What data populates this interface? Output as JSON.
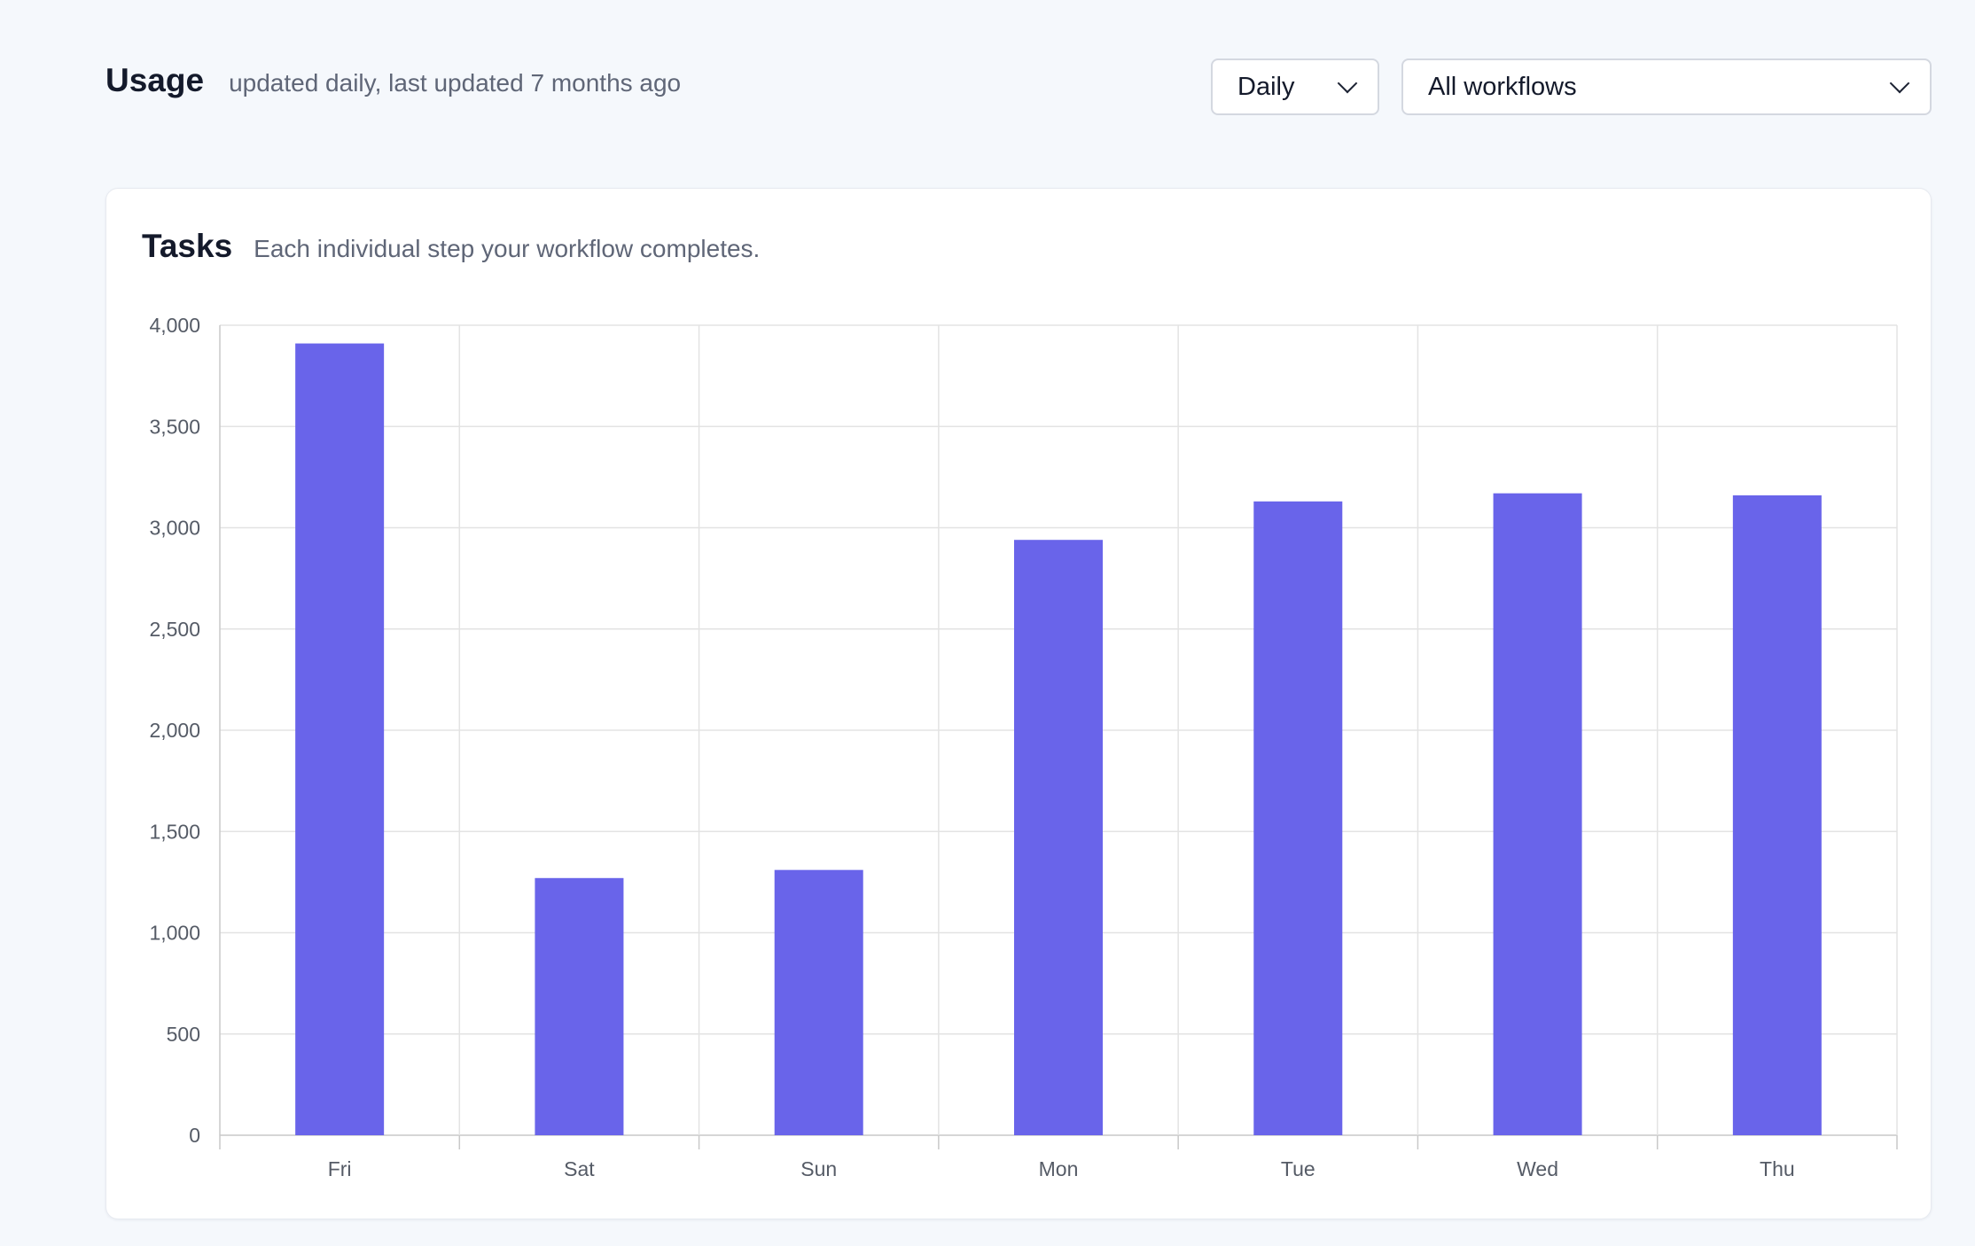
{
  "usage": {
    "title": "Usage",
    "subtitle": "updated daily, last updated 7 months ago"
  },
  "filters": {
    "period": {
      "selected": "Daily",
      "icon": "chevron-down-icon"
    },
    "workflow": {
      "selected": "All workflows",
      "icon": "chevron-down-icon"
    }
  },
  "tasks_card": {
    "title": "Tasks",
    "subtitle": "Each individual step your workflow completes."
  },
  "colors": {
    "bar": "#6964ea",
    "grid": "#e3e3e3",
    "axis": "#c9c9c9"
  },
  "chart_data": {
    "type": "bar",
    "categories": [
      "Fri",
      "Sat",
      "Sun",
      "Mon",
      "Tue",
      "Wed",
      "Thu"
    ],
    "values": [
      3910,
      1270,
      1310,
      2940,
      3130,
      3170,
      3160
    ],
    "ylim": [
      0,
      4000
    ],
    "yticks": [
      0,
      500,
      1000,
      1500,
      2000,
      2500,
      3000,
      3500,
      4000
    ],
    "ytick_labels": [
      "0",
      "500",
      "1,000",
      "1,500",
      "2,000",
      "2,500",
      "3,000",
      "3,500",
      "4,000"
    ],
    "grid": true
  }
}
